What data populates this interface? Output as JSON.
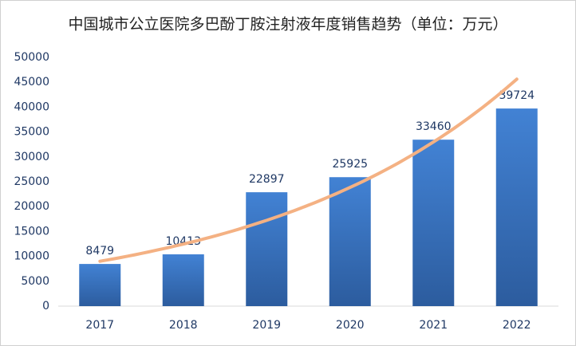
{
  "chart_data": {
    "type": "bar",
    "title": "中国城市公立医院多巴酚丁胺注射液年度销售趋势（单位：万元）",
    "categories": [
      "2017",
      "2018",
      "2019",
      "2020",
      "2021",
      "2022"
    ],
    "values": [
      8479,
      10413,
      22897,
      25925,
      33460,
      39724
    ],
    "color": "#3a73c0",
    "ylim": [
      0,
      50000
    ],
    "yticks": [
      0,
      5000,
      10000,
      15000,
      20000,
      25000,
      30000,
      35000,
      40000,
      45000,
      50000
    ],
    "grid": false,
    "trendline": {
      "kind": "exponential",
      "color": "#f4b183"
    }
  }
}
